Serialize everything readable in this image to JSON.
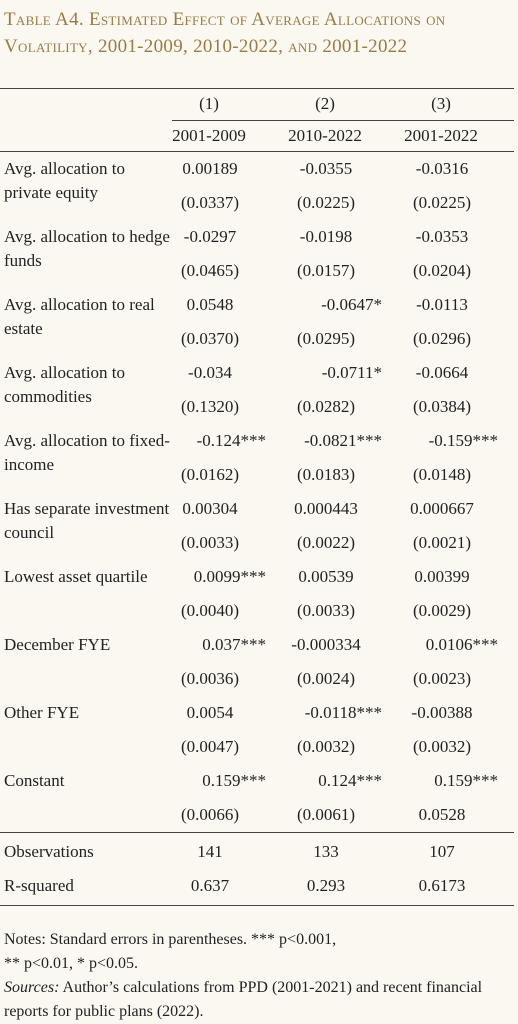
{
  "title": "Table A4. Estimated Effect of Average Allocations on Volatility, 2001-2009, 2010-2022, and 2001-2022",
  "columns": [
    {
      "number": "(1)",
      "period": "2001-2009"
    },
    {
      "number": "(2)",
      "period": "2010-2022"
    },
    {
      "number": "(3)",
      "period": "2001-2022"
    }
  ],
  "rows": [
    {
      "label": "Avg. allocation to private equity",
      "coef": [
        "0.00189",
        "-0.0355",
        "-0.0316"
      ],
      "se": [
        "(0.0337)",
        "(0.0225)",
        "(0.0225)"
      ]
    },
    {
      "label": "Avg. allocation to hedge funds",
      "coef": [
        "-0.0297",
        "-0.0198",
        "-0.0353"
      ],
      "se": [
        "(0.0465)",
        "(0.0157)",
        "(0.0204)"
      ]
    },
    {
      "label": "Avg. allocation to real estate",
      "coef": [
        "0.0548",
        "-0.0647*",
        "-0.0113"
      ],
      "se": [
        "(0.0370)",
        "(0.0295)",
        "(0.0296)"
      ]
    },
    {
      "label": "Avg. allocation to commodities",
      "coef": [
        "-0.034",
        "-0.0711*",
        "-0.0664"
      ],
      "se": [
        "(0.1320)",
        "(0.0282)",
        "(0.0384)"
      ]
    },
    {
      "label": "Avg. allocation to fixed-income",
      "coef": [
        "-0.124***",
        "-0.0821***",
        "-0.159***"
      ],
      "se": [
        "(0.0162)",
        "(0.0183)",
        "(0.0148)"
      ]
    },
    {
      "label": "Has separate investment council",
      "coef": [
        "0.00304",
        "0.000443",
        "0.000667"
      ],
      "se": [
        "(0.0033)",
        "(0.0022)",
        "(0.0021)"
      ]
    },
    {
      "label": "Lowest asset quartile",
      "coef": [
        "0.0099***",
        "0.00539",
        "0.00399"
      ],
      "se": [
        "(0.0040)",
        "(0.0033)",
        "(0.0029)"
      ]
    },
    {
      "label": "December FYE",
      "coef": [
        "0.037***",
        "-0.000334",
        "0.0106***"
      ],
      "se": [
        "(0.0036)",
        "(0.0024)",
        "(0.0023)"
      ]
    },
    {
      "label": "Other FYE",
      "coef": [
        "0.0054",
        "-0.0118***",
        "-0.00388"
      ],
      "se": [
        "(0.0047)",
        "(0.0032)",
        "(0.0032)"
      ]
    },
    {
      "label": "Constant",
      "coef": [
        "0.159***",
        "0.124***",
        "0.159***"
      ],
      "se": [
        "(0.0066)",
        "(0.0061)",
        "0.0528"
      ]
    }
  ],
  "stats": [
    {
      "label": "Observations",
      "values": [
        "141",
        "133",
        "107"
      ]
    },
    {
      "label": "R-squared",
      "values": [
        "0.637",
        "0.293",
        "0.6173"
      ]
    }
  ],
  "notes": {
    "line1": "Notes: Standard errors in parentheses.  *** p<0.001,",
    "line2": "** p<0.01, * p<0.05.",
    "sources_label": "Sources:",
    "sources_text": " Author’s calculations from PPD (2001-2021) and recent financial reports for public plans (2022)."
  },
  "colors": {
    "title": "#9a7b46",
    "background": "#fbf8f1",
    "text": "#222222"
  }
}
